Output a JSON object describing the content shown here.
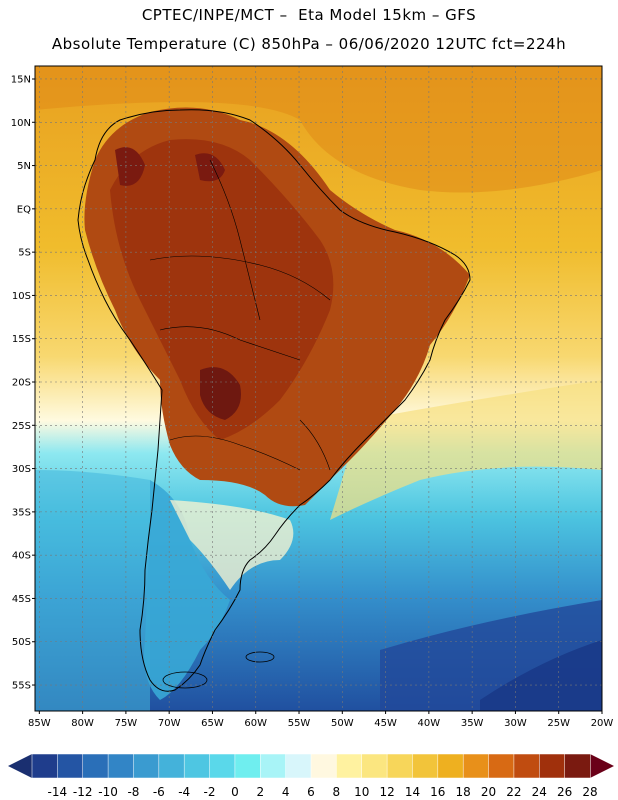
{
  "header": {
    "title_line1": "CPTEC/INPE/MCT –  Eta Model 15km – GFS",
    "title_line2": "Absolute Temperature (C) 850hPa – 06/06/2020 12UTC fct=224h"
  },
  "map": {
    "lat_ticks": [
      "15N",
      "10N",
      "5N",
      "EQ",
      "5S",
      "10S",
      "15S",
      "20S",
      "25S",
      "30S",
      "35S",
      "40S",
      "45S",
      "50S",
      "55S"
    ],
    "lon_ticks": [
      "85W",
      "80W",
      "75W",
      "70W",
      "65W",
      "60W",
      "55W",
      "50W",
      "45W",
      "40W",
      "35W",
      "30W",
      "25W",
      "20W"
    ],
    "lat_values": [
      15,
      10,
      5,
      0,
      -5,
      -10,
      -15,
      -20,
      -25,
      -30,
      -35,
      -40,
      -45,
      -50,
      -55
    ],
    "lon_values": [
      -85,
      -80,
      -75,
      -70,
      -65,
      -60,
      -55,
      -50,
      -45,
      -40,
      -35,
      -30,
      -25,
      -20
    ],
    "extent": {
      "lon_min": -85.5,
      "lon_max": -20,
      "lat_min": -58,
      "lat_max": 16.5
    }
  },
  "colorbar": {
    "labels": [
      "-14",
      "-12",
      "-10",
      "-8",
      "-6",
      "-4",
      "-2",
      "0",
      "2",
      "4",
      "6",
      "8",
      "10",
      "12",
      "14",
      "16",
      "18",
      "20",
      "22",
      "24",
      "26",
      "28"
    ],
    "colors": [
      "#1f3d8c",
      "#2455a4",
      "#2a6fb8",
      "#3285c6",
      "#3a9bd0",
      "#44b2da",
      "#4ec6e2",
      "#5ad8ea",
      "#6feeef",
      "#a8f4f7",
      "#d8f6fb",
      "#fff8e0",
      "#fff2a0",
      "#fbe680",
      "#f7d65a",
      "#f2c43a",
      "#eeb020",
      "#e8901a",
      "#d86a14",
      "#c04c10",
      "#a0300c",
      "#7a1a10"
    ],
    "under_color": "#1a2f70",
    "over_color": "#6a0018"
  }
}
